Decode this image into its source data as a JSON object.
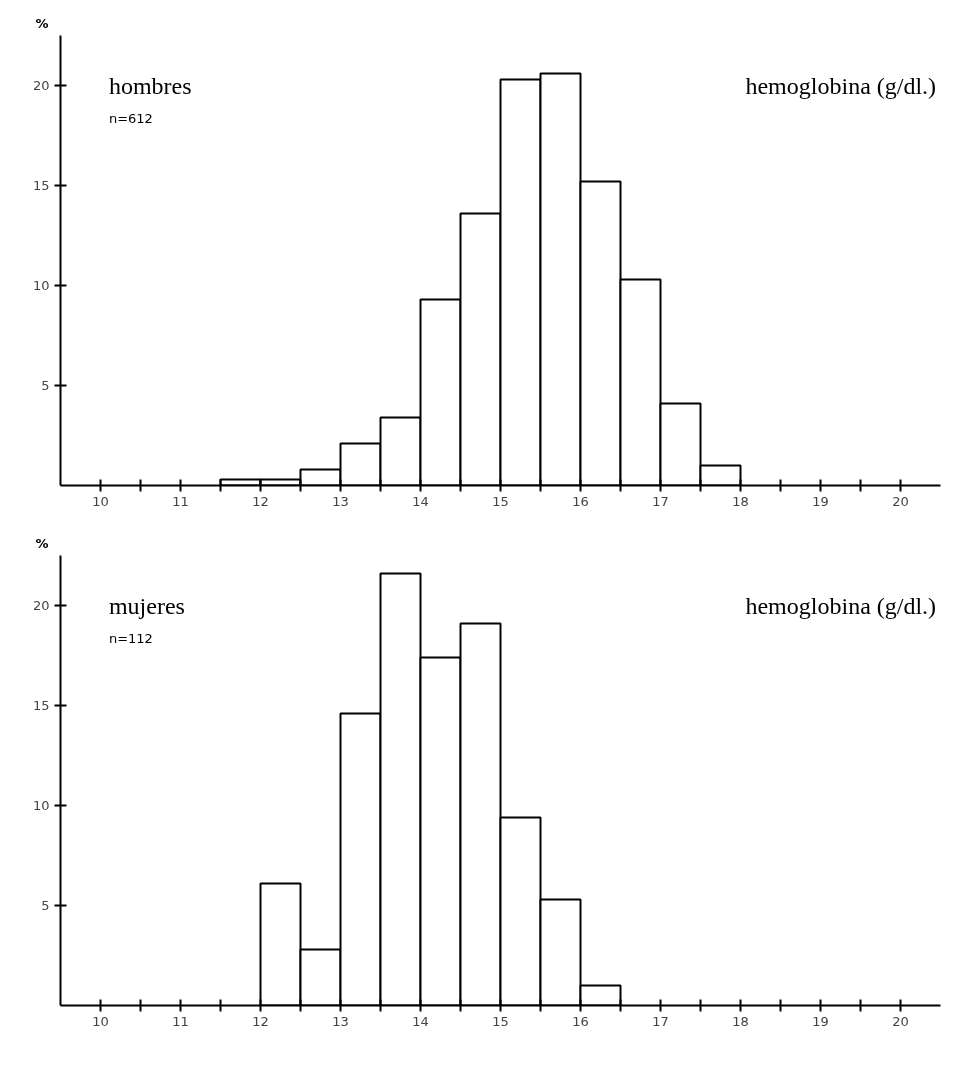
{
  "chart_data": [
    {
      "type": "histogram",
      "title": "hombres",
      "subtitle": "n=612",
      "xlabel": "hemoglobina (g/dl.)",
      "ylabel": "%",
      "color": "#ffffff",
      "bins": [
        11.5,
        12,
        12.5,
        13,
        13.5,
        14,
        14.5,
        15,
        15.5,
        16,
        16.5,
        17,
        17.5,
        18
      ],
      "values": [
        0.3,
        0.3,
        0.8,
        2.1,
        3.4,
        9.3,
        13.6,
        20.3,
        20.6,
        15.2,
        10.3,
        4.1,
        1.0
      ],
      "xlim": [
        9.5,
        20.5
      ],
      "ylim": [
        0,
        22.5
      ],
      "xticks": [
        10,
        {
          "value": 10.5,
          "label": null
        },
        11,
        {
          "value": 11.5,
          "label": null
        },
        12,
        {
          "value": 12.5,
          "label": null
        },
        13,
        {
          "value": 13.5,
          "label": null
        },
        14,
        {
          "value": 14.5,
          "label": null
        },
        15,
        {
          "value": 15.5,
          "label": null
        },
        16,
        {
          "value": 16.5,
          "label": null
        },
        17,
        {
          "value": 17.5,
          "label": null
        },
        18,
        {
          "value": 18.5,
          "label": null
        },
        19,
        {
          "value": 19.5,
          "label": null
        },
        20
      ],
      "yticks": [
        5,
        10,
        15,
        20
      ],
      "grid": false
    },
    {
      "type": "histogram",
      "title": "mujeres",
      "subtitle": "n=112",
      "xlabel": "hemoglobina (g/dl.)",
      "ylabel": "%",
      "color": "#ffffff",
      "bins": [
        12,
        12.5,
        13,
        13.5,
        14,
        14.5,
        15,
        15.5,
        16,
        16.5
      ],
      "values": [
        6.1,
        2.8,
        14.6,
        21.6,
        17.4,
        19.1,
        9.4,
        5.3,
        1.0
      ],
      "xlim": [
        9.5,
        20.5
      ],
      "ylim": [
        0,
        22.5
      ],
      "xticks": [
        10,
        {
          "value": 10.5,
          "label": null
        },
        11,
        {
          "value": 11.5,
          "label": null
        },
        12,
        {
          "value": 12.5,
          "label": null
        },
        13,
        {
          "value": 13.5,
          "label": null
        },
        14,
        {
          "value": 14.5,
          "label": null
        },
        15,
        {
          "value": 15.5,
          "label": null
        },
        16,
        {
          "value": 16.5,
          "label": null
        },
        17,
        {
          "value": 17.5,
          "label": null
        },
        18,
        {
          "value": 18.5,
          "label": null
        },
        19,
        {
          "value": 19.5,
          "label": null
        },
        20
      ],
      "yticks": [
        5,
        10,
        15,
        20
      ],
      "grid": false
    }
  ]
}
